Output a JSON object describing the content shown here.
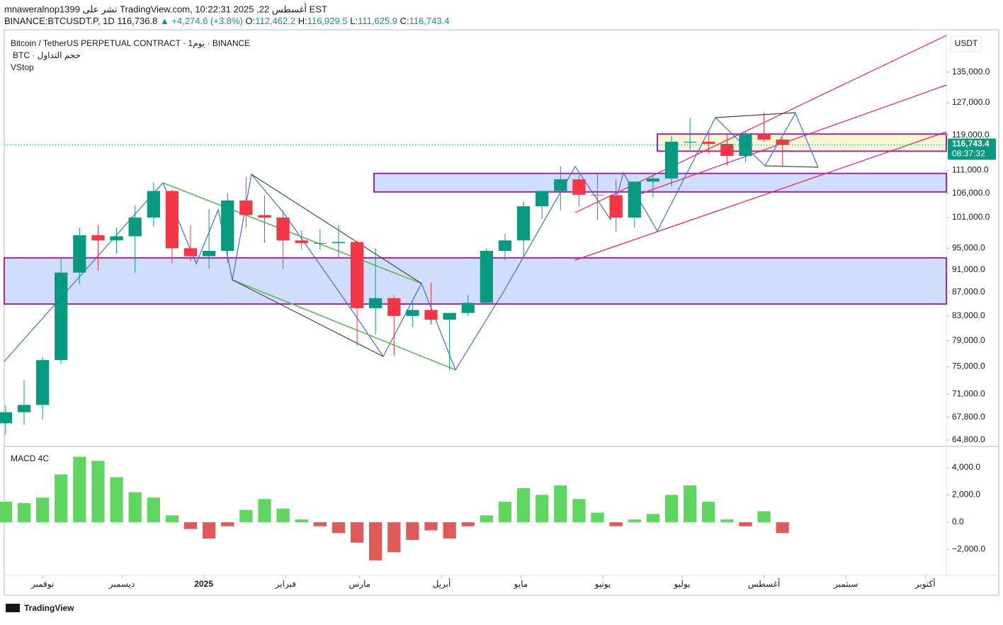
{
  "header": {
    "published": "mnaweralnop1399 نشر على TradingView.com, أغسطس 22, 2025 10:22:31 EST",
    "symbol": "BINANCE:BTCUSDT.P, 1D",
    "price": "116,736.8",
    "change": "+4,274.6 (+3.8%)",
    "ohlc": [
      "O:",
      "112,462.2",
      "H:",
      "116,929.5",
      "L:",
      "111,625.9",
      "C:",
      "116,743.4"
    ]
  },
  "footer": {
    "brand": "TradingView"
  },
  "chart_data": [
    {
      "type": "candlestick",
      "legend": [
        "Bitcoin / TetherUS PERPETUAL CONTRACT · 1يوم · BINANCE",
        "BTC · حجم التداول",
        "VStop"
      ],
      "currency": "USDT",
      "up_color": "#089981",
      "down_color": "#f23645",
      "log_scale": true,
      "x": [
        -14,
        -7,
        0,
        7,
        14,
        21,
        28,
        35,
        42,
        49,
        56,
        63,
        70,
        77,
        84,
        91,
        98,
        105,
        112,
        119,
        126,
        133,
        140,
        147,
        154,
        161,
        168,
        175,
        182,
        189,
        196,
        203,
        210,
        217,
        224,
        231,
        238,
        245,
        252,
        259,
        266,
        273,
        280
      ],
      "open": [
        67000,
        68500,
        69500,
        76000,
        90500,
        97500,
        96500,
        97300,
        101000,
        106500,
        95000,
        93500,
        94500,
        104500,
        101500,
        101000,
        96500,
        96000,
        96000,
        96200,
        84300,
        86000,
        83000,
        84000,
        82400,
        83500,
        85200,
        94500,
        96500,
        103300,
        106500,
        109000,
        105700,
        105600,
        101000,
        108500,
        109200,
        117500,
        117500,
        117000,
        114200,
        119300,
        118000
      ],
      "high": [
        69500,
        73000,
        76500,
        93000,
        99000,
        99500,
        99000,
        103500,
        108300,
        106800,
        99500,
        102700,
        106000,
        109500,
        105500,
        102400,
        98500,
        98700,
        99500,
        96500,
        95000,
        86500,
        85300,
        88800,
        83500,
        86500,
        95000,
        97800,
        104300,
        106000,
        111900,
        110000,
        110500,
        108900,
        108500,
        109800,
        118800,
        123200,
        120200,
        119300,
        120000,
        124500,
        118500
      ],
      "low": [
        65500,
        66800,
        67500,
        75500,
        88500,
        90800,
        94000,
        90500,
        99200,
        92200,
        92500,
        91200,
        92200,
        99000,
        96000,
        91200,
        94800,
        94700,
        93300,
        78200,
        80000,
        76600,
        81200,
        81600,
        74500,
        83000,
        84800,
        92800,
        93500,
        100700,
        102500,
        103300,
        100400,
        98200,
        99000,
        105200,
        107500,
        115700,
        114700,
        112000,
        112800,
        117500,
        111600
      ],
      "close": [
        68500,
        69500,
        76000,
        90500,
        97500,
        96500,
        97300,
        101000,
        106500,
        95000,
        93500,
        94500,
        104500,
        101500,
        101000,
        96500,
        96000,
        96000,
        96200,
        84300,
        86000,
        83000,
        84000,
        82400,
        83500,
        85200,
        94500,
        96500,
        103300,
        106500,
        109000,
        105700,
        105600,
        101000,
        108500,
        109200,
        117500,
        117500,
        117000,
        114200,
        119300,
        118000,
        116743.4
      ],
      "xlim": [
        -14.5,
        342
      ],
      "xticks": [
        {
          "value": 0,
          "label": "نوفمبر"
        },
        {
          "value": 30,
          "label": "ديسمبر"
        },
        {
          "value": 61,
          "label": "2025"
        },
        {
          "value": 92,
          "label": "فبراير"
        },
        {
          "value": 120,
          "label": "مارس"
        },
        {
          "value": 151,
          "label": "أبريل"
        },
        {
          "value": 181,
          "label": "مايو"
        },
        {
          "value": 212,
          "label": "يونيو"
        },
        {
          "value": 242,
          "label": "يوليو"
        },
        {
          "value": 273,
          "label": "أغسطس"
        },
        {
          "value": 304,
          "label": "سبتمبر"
        },
        {
          "value": 334,
          "label": "أكتوبر"
        }
      ],
      "ylim": [
        64250,
        146900
      ],
      "yticks": [
        {
          "value": 135000,
          "label": "135,000.0"
        },
        {
          "value": 127000,
          "label": "127,000.0"
        },
        {
          "value": 119000,
          "label": "119,000.0"
        },
        {
          "value": 111000,
          "label": "111,000.0"
        },
        {
          "value": 106000,
          "label": "106,000.0"
        },
        {
          "value": 101000,
          "label": "101,000.0"
        },
        {
          "value": 95000,
          "label": "95,000.0"
        },
        {
          "value": 91000,
          "label": "91,000.0"
        },
        {
          "value": 87000,
          "label": "87,000.0"
        },
        {
          "value": 83000,
          "label": "83,000.0"
        },
        {
          "value": 79000,
          "label": "79,000.0"
        },
        {
          "value": 75000,
          "label": "75,000.0"
        },
        {
          "value": 71000,
          "label": "71,000.0"
        },
        {
          "value": 67800,
          "label": "67,800.0"
        },
        {
          "value": 64800,
          "label": "64,800.0"
        }
      ],
      "zones": [
        [
          85000,
          93200
        ],
        [
          106300,
          110300
        ],
        [
          115300,
          119300
        ]
      ],
      "zone_colors": [
        "#d1ddfd",
        "#d1ddfd",
        "#fdf6d3"
      ],
      "last_price": {
        "value": 116743.4,
        "label": "116,743.4"
      },
      "countdown": "08:37:32"
    },
    {
      "type": "histogram",
      "legend": [
        "MACD 4C"
      ],
      "pos_color": "#5fd65f",
      "neg_color": "#e05a5a",
      "values": [
        1500,
        1400,
        1800,
        3500,
        4800,
        4500,
        3300,
        2200,
        1800,
        500,
        -500,
        -1200,
        -300,
        900,
        1700,
        1000,
        200,
        -300,
        -800,
        -1500,
        -2800,
        -2200,
        -1300,
        -600,
        -1200,
        -300,
        500,
        1500,
        2500,
        2000,
        2700,
        1700,
        700,
        -300,
        200,
        600,
        2000,
        2700,
        1500,
        200,
        -300,
        800,
        -800
      ],
      "ylim": [
        -3900,
        5450
      ],
      "yticks": [
        {
          "value": 4000,
          "label": "4,000.0"
        },
        {
          "value": 2000,
          "label": "2,000.0"
        },
        {
          "value": 0,
          "label": "0.0"
        },
        {
          "value": -2000,
          "label": "−2,000.0"
        }
      ]
    }
  ]
}
